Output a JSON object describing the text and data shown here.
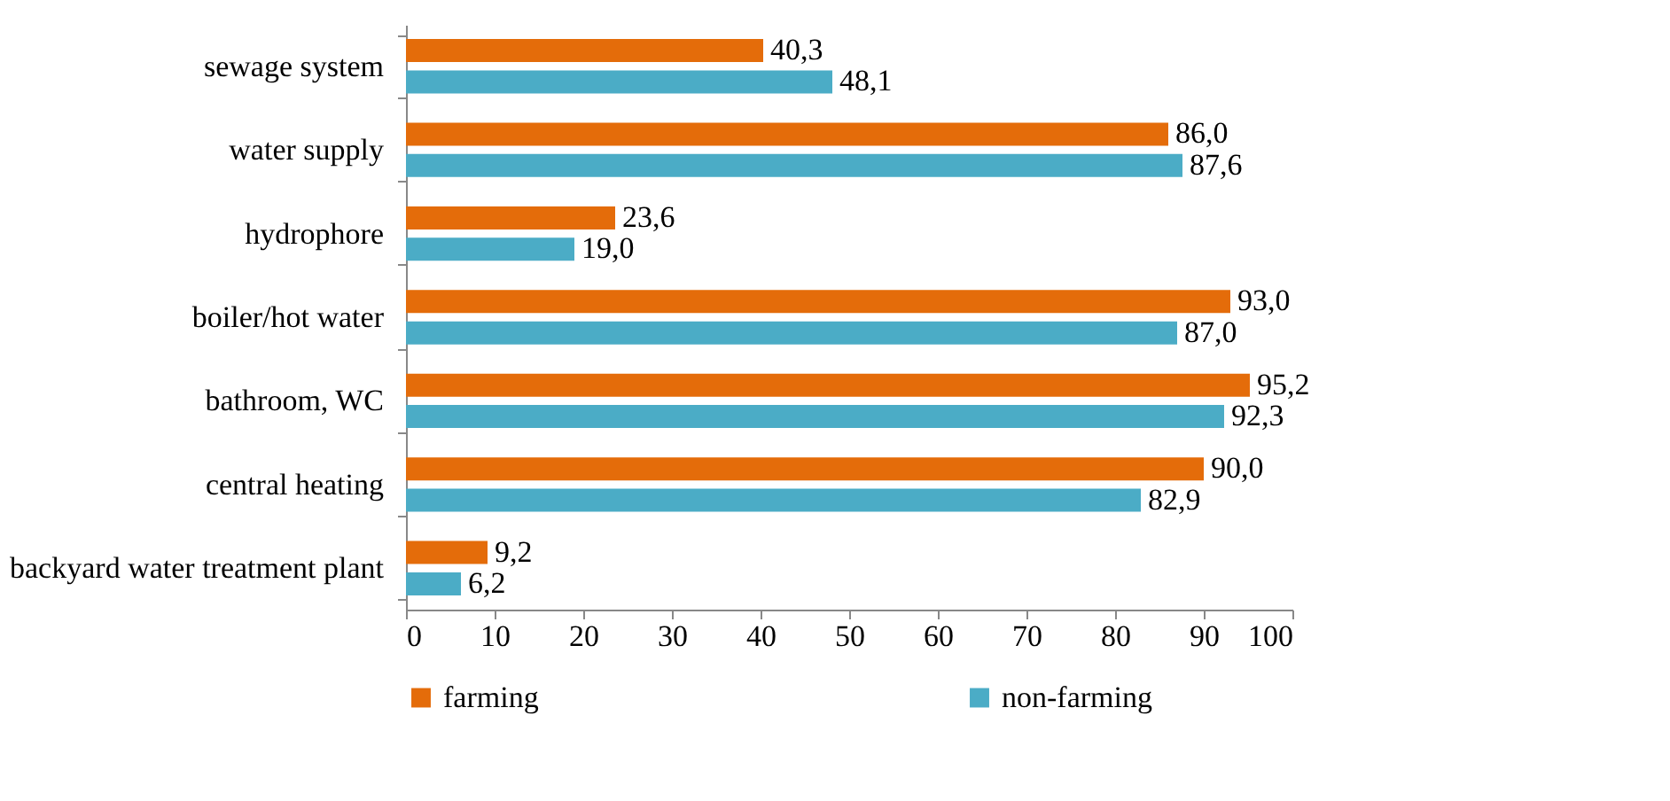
{
  "chart_data": {
    "type": "bar",
    "orientation": "horizontal",
    "categories": [
      "sewage system",
      "water supply",
      "hydrophore",
      "boiler/hot water",
      "bathroom, WC",
      "central heating",
      "backyard water treatment plant"
    ],
    "series": [
      {
        "name": "farming",
        "color": "#e46c0a",
        "values": [
          40.3,
          86.0,
          23.6,
          93.0,
          95.2,
          90.0,
          9.2
        ],
        "value_labels": [
          "40,3",
          "86,0",
          "23,6",
          "93,0",
          "95,2",
          "90,0",
          "9,2"
        ]
      },
      {
        "name": "non-farming",
        "color": "#4bacc6",
        "values": [
          48.1,
          87.6,
          19.0,
          87.0,
          92.3,
          82.9,
          6.2
        ],
        "value_labels": [
          "48,1",
          "87,6",
          "19,0",
          "87,0",
          "92,3",
          "82,9",
          "6,2"
        ]
      }
    ],
    "xlim": [
      0,
      100
    ],
    "xticks": [
      0,
      10,
      20,
      30,
      40,
      50,
      60,
      70,
      80,
      90,
      100
    ],
    "grid": false,
    "legend": "bottom"
  }
}
